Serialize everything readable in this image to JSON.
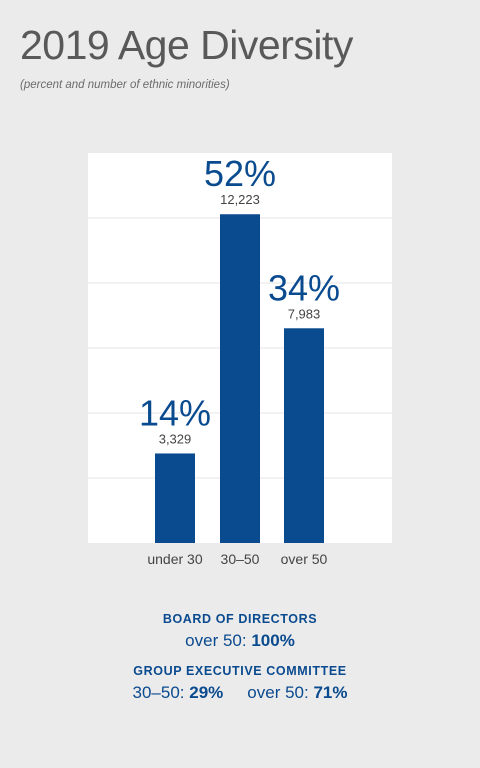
{
  "title": "2019 Age Diversity",
  "subtitle": "(percent and number of ethnic minorities)",
  "colors": {
    "bar": "#0a4a8f",
    "plot_bg": "#ffffff",
    "grid": "#e6e6e6",
    "label": "#444444"
  },
  "chart_data": {
    "type": "bar",
    "categories": [
      "under 30",
      "30–50",
      "over 50"
    ],
    "values": [
      3329,
      12223,
      7983
    ],
    "percent_labels": [
      "14%",
      "52%",
      "34%"
    ],
    "count_labels": [
      "3,329",
      "12,223",
      "7,983"
    ],
    "ylim": [
      0,
      14500
    ],
    "grid": true,
    "xlabel": "",
    "ylabel": ""
  },
  "board": {
    "heading": "BOARD OF DIRECTORS",
    "entries": [
      {
        "label": "over 50: ",
        "value": "100%"
      }
    ]
  },
  "committee": {
    "heading": "GROUP EXECUTIVE COMMITTEE",
    "entries": [
      {
        "label": "30–50: ",
        "value": "29%"
      },
      {
        "label": "over 50: ",
        "value": "71%"
      }
    ]
  }
}
